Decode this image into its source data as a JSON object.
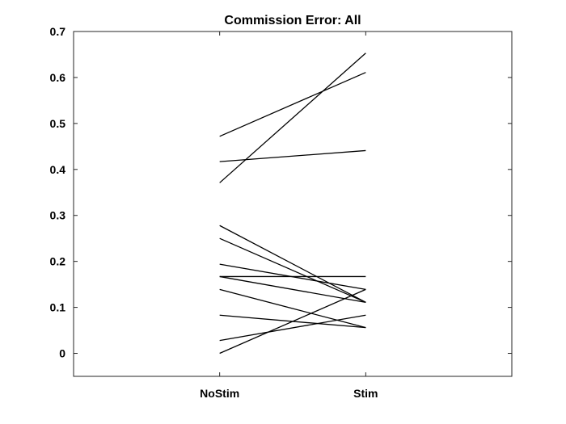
{
  "chart_data": {
    "type": "line",
    "title": "Commission Error: All",
    "xlabel": "",
    "ylabel": "",
    "categories": [
      "NoStim",
      "Stim"
    ],
    "xlim": [
      0,
      3
    ],
    "ylim": [
      -0.05,
      0.7
    ],
    "yticks": [
      0,
      0.1,
      0.2,
      0.3,
      0.4,
      0.5,
      0.6,
      0.7
    ],
    "ytick_labels": [
      "0",
      "0.1",
      "0.2",
      "0.3",
      "0.4",
      "0.5",
      "0.6",
      "0.7"
    ],
    "grid": false,
    "line_color": "#000000",
    "series": [
      {
        "values": [
          0.472,
          0.611
        ]
      },
      {
        "values": [
          0.417,
          0.441
        ]
      },
      {
        "values": [
          0.371,
          0.653
        ]
      },
      {
        "values": [
          0.278,
          0.111
        ]
      },
      {
        "values": [
          0.25,
          0.111
        ]
      },
      {
        "values": [
          0.194,
          0.139
        ]
      },
      {
        "values": [
          0.167,
          0.167
        ]
      },
      {
        "values": [
          0.167,
          0.111
        ]
      },
      {
        "values": [
          0.139,
          0.056
        ]
      },
      {
        "values": [
          0.083,
          0.056
        ]
      },
      {
        "values": [
          0.028,
          0.083
        ]
      },
      {
        "values": [
          0.0,
          0.139
        ]
      }
    ]
  }
}
